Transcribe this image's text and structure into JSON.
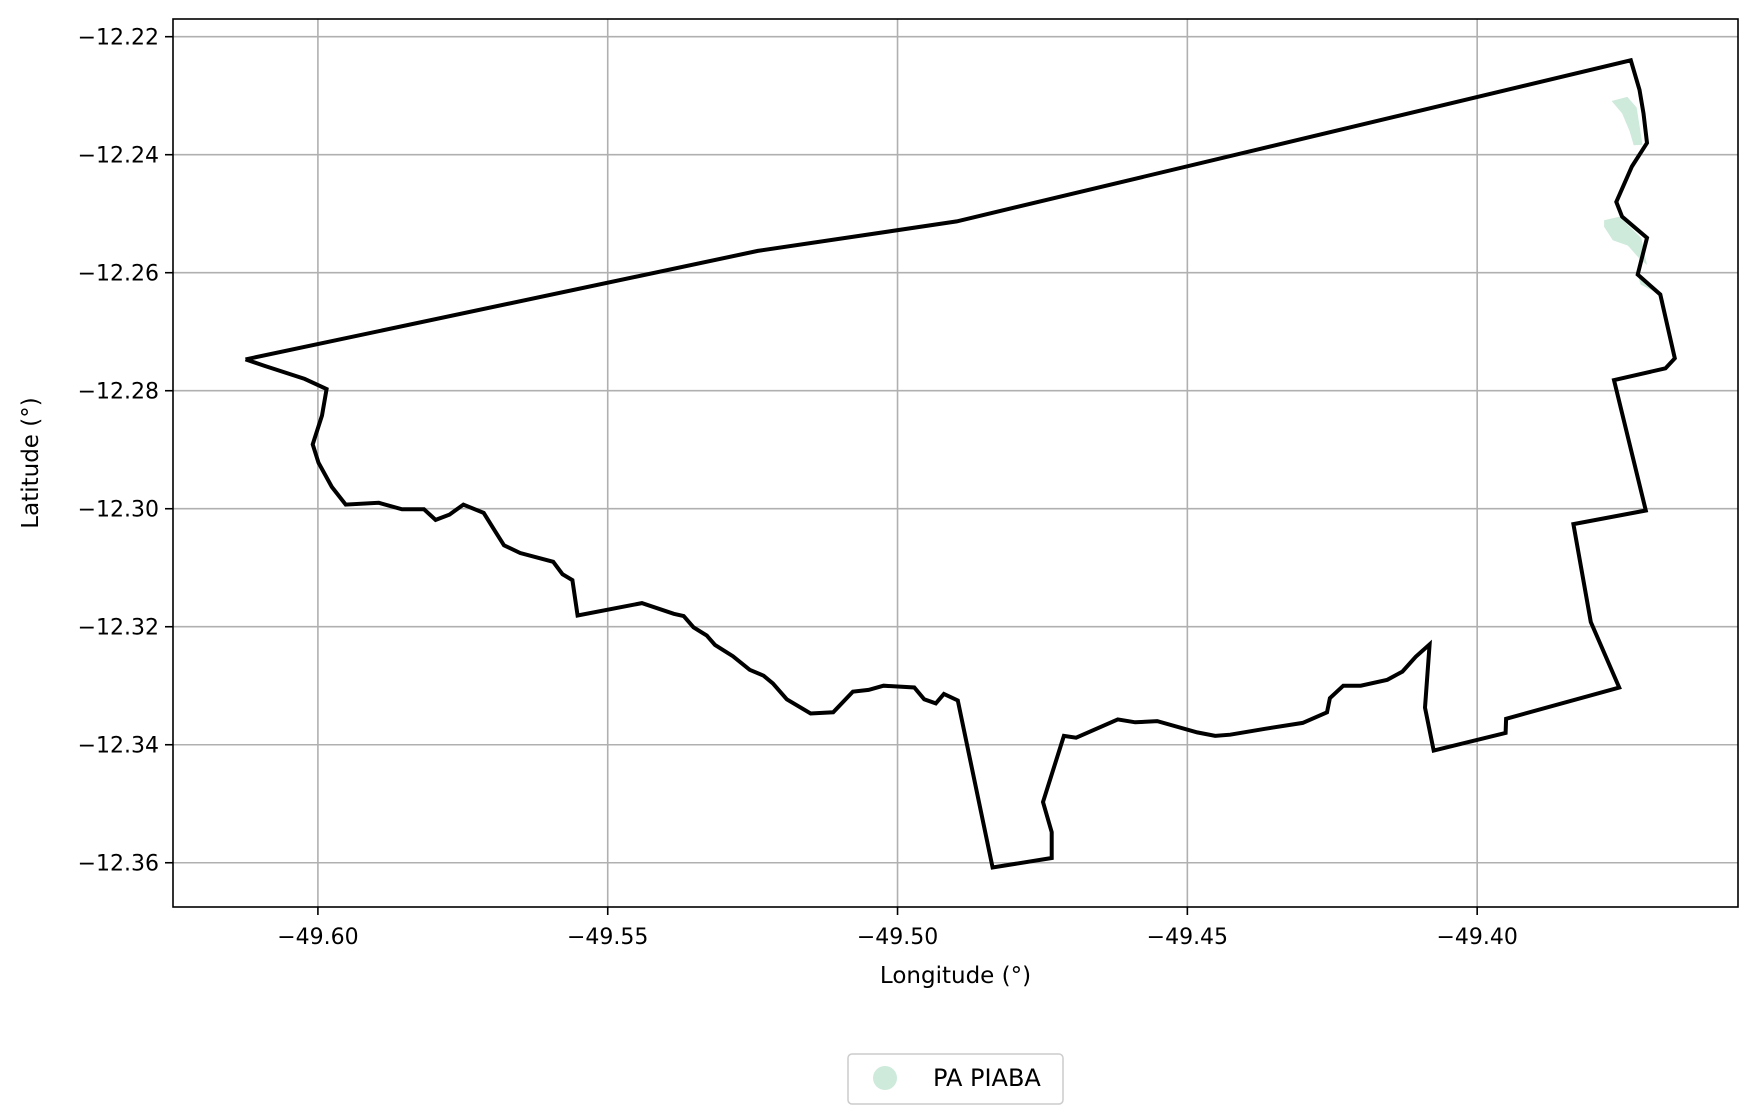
{
  "chart_data": {
    "type": "map",
    "title": "",
    "xlabel": "Longitude (°)",
    "ylabel": "Latitude (°)",
    "xlim": [
      -49.625,
      -49.355
    ],
    "ylim": [
      -12.3675,
      -12.217
    ],
    "grid": true,
    "x_ticks": [
      -49.6,
      -49.55,
      -49.5,
      -49.45,
      -49.4
    ],
    "x_tick_labels": [
      "−49.60",
      "−49.55",
      "−49.50",
      "−49.45",
      "−49.40"
    ],
    "y_ticks": [
      -12.22,
      -12.24,
      -12.26,
      -12.28,
      -12.3,
      -12.32,
      -12.34,
      -12.36
    ],
    "y_tick_labels": [
      "−12.22",
      "−12.24",
      "−12.26",
      "−12.28",
      "−12.30",
      "−12.32",
      "−12.34",
      "−12.36"
    ],
    "legend": {
      "placement": "bottom-center",
      "entries": [
        {
          "label": "PA PIABA",
          "color": "#cdeadb"
        }
      ]
    },
    "boundary": {
      "name": "municipality-boundary",
      "color": "#000000",
      "points": [
        [
          -49.6125,
          -12.2747
        ],
        [
          -49.6092,
          -12.2758
        ],
        [
          -49.6023,
          -12.278
        ],
        [
          -49.5985,
          -12.2797
        ],
        [
          -49.5993,
          -12.2842
        ],
        [
          -49.6009,
          -12.2891
        ],
        [
          -49.5999,
          -12.2922
        ],
        [
          -49.5976,
          -12.2963
        ],
        [
          -49.5952,
          -12.2993
        ],
        [
          -49.5895,
          -12.299
        ],
        [
          -49.5855,
          -12.3001
        ],
        [
          -49.5817,
          -12.3001
        ],
        [
          -49.5797,
          -12.3019
        ],
        [
          -49.5773,
          -12.301
        ],
        [
          -49.5749,
          -12.2993
        ],
        [
          -49.5714,
          -12.3007
        ],
        [
          -49.5695,
          -12.3037
        ],
        [
          -49.5679,
          -12.3062
        ],
        [
          -49.5651,
          -12.3075
        ],
        [
          -49.5594,
          -12.309
        ],
        [
          -49.5578,
          -12.3111
        ],
        [
          -49.5561,
          -12.3121
        ],
        [
          -49.5552,
          -12.3181
        ],
        [
          -49.5441,
          -12.316
        ],
        [
          -49.5386,
          -12.3178
        ],
        [
          -49.5369,
          -12.3182
        ],
        [
          -49.5352,
          -12.3201
        ],
        [
          -49.5329,
          -12.3215
        ],
        [
          -49.5315,
          -12.3231
        ],
        [
          -49.5284,
          -12.325
        ],
        [
          -49.5255,
          -12.3273
        ],
        [
          -49.5231,
          -12.3283
        ],
        [
          -49.5215,
          -12.3296
        ],
        [
          -49.5191,
          -12.3323
        ],
        [
          -49.515,
          -12.3347
        ],
        [
          -49.5111,
          -12.3345
        ],
        [
          -49.5077,
          -12.331
        ],
        [
          -49.505,
          -12.3307
        ],
        [
          -49.5024,
          -12.33
        ],
        [
          -49.4971,
          -12.3303
        ],
        [
          -49.4954,
          -12.3323
        ],
        [
          -49.4934,
          -12.333
        ],
        [
          -49.492,
          -12.3314
        ],
        [
          -49.4896,
          -12.3325
        ],
        [
          -49.4836,
          -12.3608
        ],
        [
          -49.4734,
          -12.3592
        ],
        [
          -49.4734,
          -12.3548
        ],
        [
          -49.4749,
          -12.3497
        ],
        [
          -49.4713,
          -12.3385
        ],
        [
          -49.4692,
          -12.3388
        ],
        [
          -49.462,
          -12.3357
        ],
        [
          -49.459,
          -12.3362
        ],
        [
          -49.4552,
          -12.336
        ],
        [
          -49.4483,
          -12.3379
        ],
        [
          -49.4452,
          -12.3385
        ],
        [
          -49.4426,
          -12.3383
        ],
        [
          -49.4366,
          -12.3373
        ],
        [
          -49.4301,
          -12.3363
        ],
        [
          -49.4259,
          -12.3345
        ],
        [
          -49.4254,
          -12.3321
        ],
        [
          -49.4231,
          -12.33
        ],
        [
          -49.4201,
          -12.33
        ],
        [
          -49.4155,
          -12.329
        ],
        [
          -49.4129,
          -12.3276
        ],
        [
          -49.4106,
          -12.3251
        ],
        [
          -49.4082,
          -12.323
        ],
        [
          -49.409,
          -12.3337
        ],
        [
          -49.4075,
          -12.341
        ],
        [
          -49.3951,
          -12.338
        ],
        [
          -49.395,
          -12.3356
        ],
        [
          -49.3755,
          -12.3303
        ],
        [
          -49.3804,
          -12.3192
        ],
        [
          -49.3834,
          -12.3026
        ],
        [
          -49.3709,
          -12.3003
        ],
        [
          -49.3764,
          -12.2782
        ],
        [
          -49.3675,
          -12.2762
        ],
        [
          -49.3659,
          -12.2745
        ],
        [
          -49.3684,
          -12.2637
        ],
        [
          -49.3723,
          -12.2603
        ],
        [
          -49.3707,
          -12.2541
        ],
        [
          -49.375,
          -12.2505
        ],
        [
          -49.376,
          -12.248
        ],
        [
          -49.3733,
          -12.242
        ],
        [
          -49.3707,
          -12.238
        ],
        [
          -49.3713,
          -12.233
        ],
        [
          -49.372,
          -12.229
        ],
        [
          -49.3735,
          -12.224
        ],
        [
          -49.4898,
          -12.2513
        ],
        [
          -49.5241,
          -12.2563
        ],
        [
          -49.6125,
          -12.2747
        ]
      ]
    },
    "areas": [
      {
        "name": "pa-piaba-area-north",
        "label": "PA PIABA",
        "color": "#cdeadb",
        "points": [
          [
            -49.3768,
            -12.2309
          ],
          [
            -49.3741,
            -12.2302
          ],
          [
            -49.3725,
            -12.232
          ],
          [
            -49.3719,
            -12.2356
          ],
          [
            -49.3715,
            -12.2383
          ],
          [
            -49.373,
            -12.2384
          ],
          [
            -49.3737,
            -12.236
          ],
          [
            -49.375,
            -12.233
          ]
        ]
      },
      {
        "name": "pa-piaba-area-middle",
        "label": "PA PIABA",
        "color": "#cdeadb",
        "points": [
          [
            -49.3755,
            -12.2505
          ],
          [
            -49.3781,
            -12.2511
          ],
          [
            -49.3781,
            -12.2522
          ],
          [
            -49.3766,
            -12.2545
          ],
          [
            -49.374,
            -12.2554
          ],
          [
            -49.3721,
            -12.2575
          ],
          [
            -49.3707,
            -12.2587
          ],
          [
            -49.3717,
            -12.2541
          ],
          [
            -49.3738,
            -12.2521
          ]
        ]
      },
      {
        "name": "pa-piaba-area-south",
        "label": "PA PIABA",
        "color": "#cdeadb",
        "points": [
          [
            -49.3723,
            -12.2603
          ],
          [
            -49.3718,
            -12.262
          ],
          [
            -49.3694,
            -12.2632
          ],
          [
            -49.3676,
            -12.265
          ],
          [
            -49.3684,
            -12.2637
          ]
        ]
      }
    ]
  }
}
